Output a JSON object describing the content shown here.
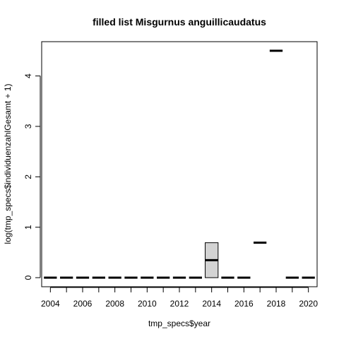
{
  "chart_data": {
    "type": "boxplot",
    "title": "filled list Misgurnus anguillicaudatus",
    "xlabel": "tmp_specs$year",
    "ylabel": "log(tmp_specs$individuenzahlGesamt + 1)",
    "categories": [
      "2004",
      "2005",
      "2006",
      "2007",
      "2008",
      "2009",
      "2010",
      "2011",
      "2012",
      "2013",
      "2014",
      "2015",
      "2016",
      "2017",
      "2018",
      "2019",
      "2020"
    ],
    "x_tick_labels": [
      "2004",
      "2006",
      "2008",
      "2010",
      "2012",
      "2014",
      "2016",
      "2018",
      "2020"
    ],
    "y_ticks": [
      0,
      1,
      2,
      3,
      4
    ],
    "ylim": [
      -0.18,
      4.68
    ],
    "box_fill": "#d3d3d3",
    "boxes": [
      {
        "category": "2004",
        "min": 0,
        "q1": 0,
        "median": 0,
        "q3": 0,
        "max": 0
      },
      {
        "category": "2005",
        "min": 0,
        "q1": 0,
        "median": 0,
        "q3": 0,
        "max": 0
      },
      {
        "category": "2006",
        "min": 0,
        "q1": 0,
        "median": 0,
        "q3": 0,
        "max": 0
      },
      {
        "category": "2007",
        "min": 0,
        "q1": 0,
        "median": 0,
        "q3": 0,
        "max": 0
      },
      {
        "category": "2008",
        "min": 0,
        "q1": 0,
        "median": 0,
        "q3": 0,
        "max": 0
      },
      {
        "category": "2009",
        "min": 0,
        "q1": 0,
        "median": 0,
        "q3": 0,
        "max": 0
      },
      {
        "category": "2010",
        "min": 0,
        "q1": 0,
        "median": 0,
        "q3": 0,
        "max": 0
      },
      {
        "category": "2011",
        "min": 0,
        "q1": 0,
        "median": 0,
        "q3": 0,
        "max": 0
      },
      {
        "category": "2012",
        "min": 0,
        "q1": 0,
        "median": 0,
        "q3": 0,
        "max": 0
      },
      {
        "category": "2013",
        "min": 0,
        "q1": 0,
        "median": 0,
        "q3": 0,
        "max": 0
      },
      {
        "category": "2014",
        "min": 0,
        "q1": 0,
        "median": 0.347,
        "q3": 0.693,
        "max": 0.693
      },
      {
        "category": "2015",
        "min": 0,
        "q1": 0,
        "median": 0,
        "q3": 0,
        "max": 0
      },
      {
        "category": "2016",
        "min": 0,
        "q1": 0,
        "median": 0,
        "q3": 0,
        "max": 0
      },
      {
        "category": "2017",
        "min": 0.693,
        "q1": 0.693,
        "median": 0.693,
        "q3": 0.693,
        "max": 0.693
      },
      {
        "category": "2018",
        "min": 4.5,
        "q1": 4.5,
        "median": 4.5,
        "q3": 4.5,
        "max": 4.5
      },
      {
        "category": "2019",
        "min": 0,
        "q1": 0,
        "median": 0,
        "q3": 0,
        "max": 0
      },
      {
        "category": "2020",
        "min": 0,
        "q1": 0,
        "median": 0,
        "q3": 0,
        "max": 0
      }
    ],
    "grid": false,
    "legend": "none"
  }
}
